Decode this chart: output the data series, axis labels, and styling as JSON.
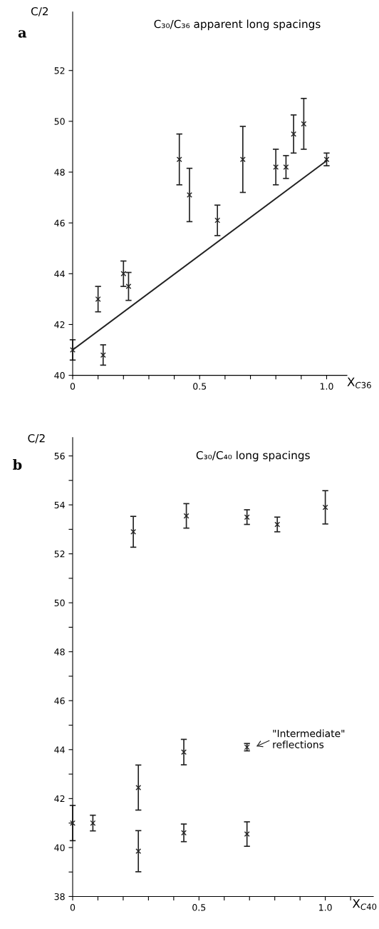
{
  "chart_data": [
    {
      "type": "scatter",
      "title": "C₃₀/C₃₆ apparent long spacings",
      "ylabel": "C/2",
      "xlabel": "X$_{C36}$",
      "marker": "cross",
      "grid": false,
      "xlim": [
        0,
        1.08
      ],
      "ylim": [
        40,
        54.3
      ],
      "xticks": [
        0,
        {
          "value": 0.1,
          "label": null
        },
        {
          "value": 0.2,
          "label": null
        },
        {
          "value": 0.3,
          "label": null
        },
        {
          "value": 0.4,
          "label": null
        },
        {
          "value": 0.5,
          "label": "0.5"
        },
        {
          "value": 0.6,
          "label": null
        },
        {
          "value": 0.7,
          "label": null
        },
        {
          "value": 0.8,
          "label": null
        },
        {
          "value": 0.9,
          "label": null
        },
        {
          "value": 1.0,
          "label": "1.0"
        }
      ],
      "yticks": [
        40,
        42,
        44,
        46,
        48,
        50,
        52
      ],
      "annotations": [
        "a"
      ],
      "series": [
        {
          "color": "#222222",
          "x": [
            0,
            0.1,
            0.12,
            0.2,
            0.22,
            0.42,
            0.46,
            0.57,
            0.67,
            0.8,
            0.84,
            0.87,
            0.91,
            1.0
          ],
          "values": [
            41.0,
            43.0,
            40.8,
            44.0,
            43.5,
            48.5,
            47.1,
            46.1,
            48.5,
            48.2,
            48.2,
            49.5,
            49.9,
            48.5
          ],
          "errors": [
            0.4,
            0.5,
            0.4,
            0.5,
            0.55,
            1.0,
            1.05,
            0.6,
            1.3,
            0.7,
            0.45,
            0.75,
            1.0,
            0.25
          ]
        },
        {
          "type": "line",
          "color": "#222222",
          "marker": "none",
          "x": [
            0,
            1.0
          ],
          "values": [
            41.0,
            48.45
          ]
        }
      ]
    },
    {
      "type": "scatter",
      "title": "C₃₀/C₄₀ long spacings",
      "ylabel": "C/2",
      "xlabel": "X$_{C40}$",
      "marker": "cross",
      "grid": false,
      "xlim": [
        0,
        1.19
      ],
      "ylim": [
        38,
        56.75
      ],
      "xticks": [
        0,
        {
          "value": 0.1,
          "label": null
        },
        {
          "value": 0.2,
          "label": null
        },
        {
          "value": 0.3,
          "label": null
        },
        {
          "value": 0.4,
          "label": null
        },
        {
          "value": 0.5,
          "label": "0.5"
        },
        {
          "value": 0.6,
          "label": null
        },
        {
          "value": 0.7,
          "label": null
        },
        {
          "value": 0.8,
          "label": null
        },
        {
          "value": 0.9,
          "label": null
        },
        {
          "value": 1.0,
          "label": "1.0"
        },
        {
          "value": 1.1,
          "label": null
        }
      ],
      "yticks": [
        38,
        {
          "value": 39,
          "label": null
        },
        40,
        {
          "value": 41,
          "label": null
        },
        42,
        {
          "value": 43,
          "label": null
        },
        44,
        {
          "value": 45,
          "label": null
        },
        46,
        {
          "value": 47,
          "label": null
        },
        48,
        {
          "value": 49,
          "label": null
        },
        50,
        {
          "value": 51,
          "label": null
        },
        52,
        {
          "value": 53,
          "label": null
        },
        54,
        {
          "value": 55,
          "label": null
        },
        56
      ],
      "annotations": [
        "b",
        {
          "text": "\"Intermediate\"\nreflections",
          "x": 0.69,
          "y": 44.1
        }
      ],
      "series": [
        {
          "color": "#222222",
          "x": [
            0.24,
            0.45,
            0.69,
            0.81,
            1.0,
            0,
            0.08,
            0.26,
            0.26,
            0.44,
            0.44,
            0.69,
            0.69
          ],
          "values": [
            52.9,
            53.55,
            53.5,
            53.2,
            53.9,
            41.0,
            41.0,
            42.45,
            39.85,
            43.9,
            40.6,
            44.1,
            40.55
          ],
          "errors": [
            0.63,
            0.5,
            0.3,
            0.3,
            0.68,
            0.72,
            0.32,
            0.92,
            0.84,
            0.52,
            0.36,
            0.15,
            0.5
          ]
        }
      ]
    }
  ]
}
